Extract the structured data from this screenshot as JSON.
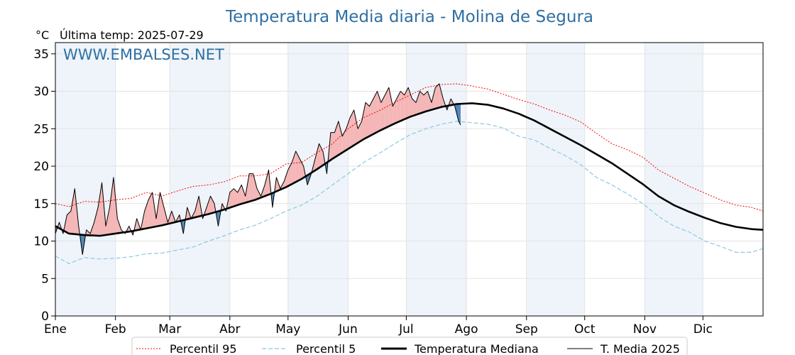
{
  "chart_data": {
    "type": "line",
    "title": "Temperatura Media diaria - Molina de Segura",
    "unit": "°C",
    "subtitle": "Última temp: 2025-07-29",
    "watermark": "WWW.EMBALSES.NET",
    "ylim": [
      0,
      36.5
    ],
    "xlim_days": [
      1,
      366
    ],
    "yticks": [
      0,
      5,
      10,
      15,
      20,
      25,
      30,
      35
    ],
    "months": [
      {
        "label": "Ene",
        "day": 1
      },
      {
        "label": "Feb",
        "day": 32
      },
      {
        "label": "Mar",
        "day": 60
      },
      {
        "label": "Abr",
        "day": 91
      },
      {
        "label": "May",
        "day": 121
      },
      {
        "label": "Jun",
        "day": 152
      },
      {
        "label": "Jul",
        "day": 182
      },
      {
        "label": "Ago",
        "day": 213
      },
      {
        "label": "Sep",
        "day": 244
      },
      {
        "label": "Oct",
        "day": 274
      },
      {
        "label": "Nov",
        "day": 305
      },
      {
        "label": "Dic",
        "day": 335
      }
    ],
    "grid": true,
    "legend_position": "bottom-center",
    "legend": [
      "Percentil 95",
      "Percentil 5",
      "Temperatura Mediana",
      "T. Media 2025"
    ],
    "colors": {
      "p95": "#ff0000",
      "p5": "#8cc8e0",
      "median": "#000000",
      "actual": "#000000",
      "warm_fill": "#f4b6b6",
      "cold_fill": "#4f84b5",
      "title": "#2f6fa3",
      "band": "#eef4fa"
    },
    "series": [
      {
        "name": "Percentil 95",
        "key": "p95",
        "x": [
          1,
          8,
          16,
          24,
          32,
          40,
          48,
          56,
          64,
          72,
          80,
          88,
          96,
          104,
          112,
          120,
          128,
          136,
          144,
          152,
          160,
          168,
          176,
          184,
          192,
          200,
          208,
          216,
          224,
          232,
          240,
          248,
          256,
          264,
          272,
          280,
          288,
          296,
          304,
          312,
          320,
          328,
          336,
          344,
          352,
          360,
          366
        ],
        "values": [
          15.0,
          14.6,
          15.3,
          15.2,
          15.5,
          15.7,
          16.5,
          16.0,
          16.7,
          17.3,
          17.5,
          17.9,
          18.7,
          18.7,
          19.0,
          20.3,
          20.5,
          21.8,
          23.0,
          25.0,
          26.5,
          27.4,
          28.5,
          29.5,
          30.5,
          30.9,
          31.0,
          30.7,
          30.3,
          29.6,
          28.9,
          28.3,
          27.5,
          26.8,
          25.9,
          24.4,
          23.0,
          22.2,
          21.2,
          19.5,
          18.4,
          17.3,
          16.4,
          15.5,
          14.8,
          14.5,
          14.0
        ]
      },
      {
        "name": "Percentil 5",
        "key": "p5",
        "x": [
          1,
          8,
          16,
          24,
          32,
          40,
          48,
          56,
          64,
          72,
          80,
          88,
          96,
          104,
          112,
          120,
          128,
          136,
          144,
          152,
          160,
          168,
          176,
          184,
          192,
          200,
          208,
          216,
          224,
          232,
          240,
          248,
          256,
          264,
          272,
          280,
          288,
          296,
          304,
          312,
          320,
          328,
          336,
          344,
          352,
          360,
          366
        ],
        "values": [
          8.0,
          7.0,
          7.8,
          7.6,
          7.7,
          7.9,
          8.3,
          8.4,
          8.8,
          9.2,
          10.0,
          10.7,
          11.5,
          12.1,
          13.0,
          14.0,
          14.8,
          16.0,
          17.5,
          19.0,
          20.5,
          21.7,
          23.0,
          24.2,
          25.0,
          25.6,
          26.0,
          25.8,
          25.6,
          25.1,
          24.0,
          23.5,
          22.4,
          21.4,
          20.2,
          18.5,
          17.5,
          16.3,
          15.0,
          13.3,
          12.0,
          11.2,
          10.0,
          9.3,
          8.5,
          8.5,
          9.0
        ]
      },
      {
        "name": "Temperatura Mediana",
        "key": "median",
        "x": [
          1,
          8,
          16,
          24,
          32,
          40,
          48,
          56,
          64,
          72,
          80,
          88,
          96,
          104,
          112,
          120,
          128,
          136,
          144,
          152,
          160,
          168,
          176,
          184,
          192,
          200,
          208,
          216,
          224,
          232,
          240,
          248,
          256,
          264,
          272,
          280,
          288,
          296,
          304,
          312,
          320,
          328,
          336,
          344,
          352,
          360,
          366
        ],
        "values": [
          12.0,
          11.0,
          10.8,
          10.7,
          11.0,
          11.3,
          11.7,
          12.1,
          12.6,
          13.1,
          13.6,
          14.2,
          14.9,
          15.5,
          16.3,
          17.2,
          18.3,
          19.6,
          21.0,
          22.3,
          23.6,
          24.7,
          25.7,
          26.6,
          27.3,
          27.9,
          28.3,
          28.4,
          28.2,
          27.7,
          27.0,
          26.1,
          25.0,
          23.9,
          22.8,
          21.6,
          20.4,
          19.0,
          17.6,
          16.0,
          14.8,
          13.9,
          13.1,
          12.4,
          11.9,
          11.6,
          11.5
        ]
      },
      {
        "name": "T. Media 2025",
        "key": "actual",
        "x": [
          1,
          3,
          5,
          7,
          9,
          11,
          13,
          15,
          17,
          19,
          21,
          23,
          25,
          27,
          29,
          31,
          33,
          35,
          37,
          39,
          41,
          43,
          45,
          47,
          49,
          51,
          53,
          55,
          57,
          59,
          61,
          63,
          65,
          67,
          69,
          71,
          73,
          75,
          77,
          79,
          81,
          83,
          85,
          87,
          89,
          91,
          93,
          95,
          97,
          99,
          101,
          103,
          105,
          107,
          109,
          111,
          113,
          115,
          117,
          119,
          121,
          123,
          125,
          127,
          129,
          131,
          133,
          135,
          137,
          139,
          141,
          143,
          145,
          147,
          149,
          151,
          153,
          155,
          157,
          159,
          161,
          163,
          165,
          167,
          169,
          171,
          173,
          175,
          177,
          179,
          181,
          183,
          185,
          187,
          189,
          191,
          193,
          195,
          197,
          199,
          201,
          203,
          205,
          207,
          209,
          210
        ],
        "values": [
          11.0,
          12.5,
          11.0,
          13.5,
          14.0,
          17.0,
          12.0,
          8.2,
          11.5,
          11.0,
          12.5,
          14.5,
          17.8,
          12.0,
          14.5,
          18.5,
          13.0,
          11.5,
          11.0,
          12.0,
          10.8,
          13.0,
          11.5,
          14.0,
          15.5,
          16.5,
          13.0,
          16.5,
          14.5,
          12.5,
          14.0,
          12.5,
          13.5,
          11.0,
          14.5,
          13.0,
          14.0,
          16.0,
          13.0,
          14.5,
          16.0,
          15.0,
          12.0,
          15.0,
          14.0,
          16.5,
          17.0,
          16.5,
          17.5,
          16.0,
          19.0,
          19.0,
          17.0,
          16.0,
          17.5,
          19.5,
          14.5,
          18.5,
          17.0,
          18.0,
          19.5,
          20.5,
          22.0,
          21.0,
          20.0,
          17.5,
          19.0,
          21.0,
          23.0,
          22.0,
          19.0,
          24.5,
          24.5,
          26.0,
          24.0,
          25.0,
          26.5,
          27.5,
          25.0,
          26.0,
          28.5,
          28.0,
          29.0,
          30.0,
          28.5,
          29.5,
          30.5,
          28.0,
          29.0,
          30.0,
          29.5,
          30.5,
          29.0,
          28.5,
          30.0,
          29.5,
          30.0,
          28.5,
          30.5,
          31.0,
          29.0,
          27.5,
          29.0,
          28.0,
          26.0,
          25.5
        ]
      }
    ]
  }
}
